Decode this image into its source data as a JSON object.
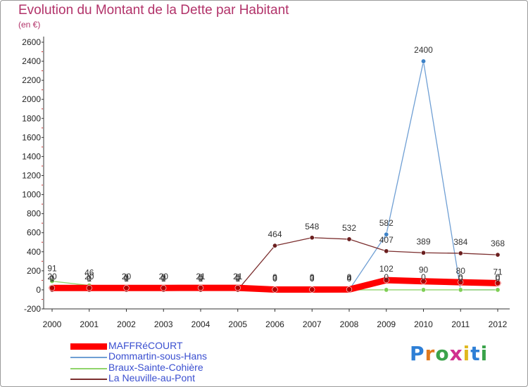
{
  "title": "Evolution du Montant de la Dette par Habitant",
  "subtitle": "(en €)",
  "logo": "Proxiti",
  "chart_data": {
    "type": "line",
    "title": "Evolution du Montant de la Dette par Habitant",
    "ylabel": "(en €)",
    "xlabel": "",
    "x": [
      2000,
      2001,
      2002,
      2003,
      2004,
      2005,
      2006,
      2007,
      2008,
      2009,
      2010,
      2011,
      2012
    ],
    "ylim": [
      -200,
      2600
    ],
    "yticks": [
      -200,
      0,
      200,
      400,
      600,
      800,
      1000,
      1200,
      1400,
      1600,
      1800,
      2000,
      2200,
      2400,
      2600
    ],
    "grid": false,
    "legend": "bottom-left",
    "series": [
      {
        "name": "MAFFRéCOURT",
        "color": "#ff0000",
        "values": [
          20,
          20,
          20,
          20,
          21,
          21,
          3,
          3,
          4,
          102,
          90,
          80,
          71
        ],
        "labels": [
          "20",
          "20",
          "20",
          "20",
          "21",
          "21",
          "3",
          "3",
          "4",
          "102",
          "90",
          "80",
          "71"
        ]
      },
      {
        "name": "Dommartin-sous-Hans",
        "color": "#6f9fd4",
        "values": [
          0,
          0,
          0,
          0,
          0,
          0,
          0,
          0,
          0,
          582,
          2400,
          0,
          0
        ],
        "labels": [
          "0",
          "0",
          "0",
          "0",
          "0",
          "0",
          "0",
          "0",
          "0",
          "582",
          "2400",
          "0",
          "0"
        ]
      },
      {
        "name": "Braux-Sainte-Cohière",
        "color": "#8fd46a",
        "values": [
          91,
          46,
          0,
          0,
          0,
          0,
          0,
          0,
          0,
          0,
          0,
          0,
          0
        ],
        "labels": [
          "91",
          "46",
          "0",
          "0",
          "0",
          "0",
          "0",
          "0",
          "0",
          "0",
          "0",
          "0",
          "0"
        ]
      },
      {
        "name": "La Neuville-au-Pont",
        "color": "#7b2e2e",
        "values": [
          1,
          1,
          1,
          1,
          1,
          1,
          464,
          548,
          532,
          407,
          389,
          384,
          368
        ],
        "labels": [
          "1",
          "1",
          "1",
          "1",
          "1",
          "1",
          "464",
          "548",
          "532",
          "407",
          "389",
          "384",
          "368"
        ]
      }
    ]
  }
}
